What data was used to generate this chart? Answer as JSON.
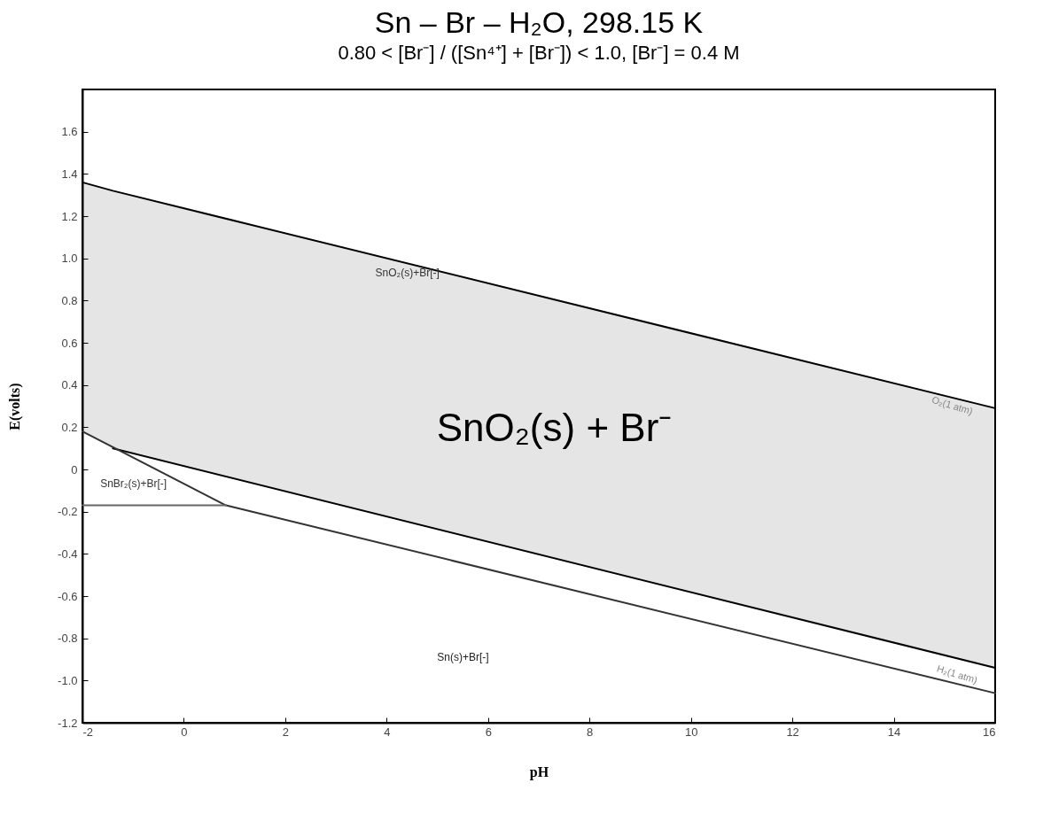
{
  "chart_data": {
    "type": "line",
    "title": "Sn – Br – H₂O, 298.15 K",
    "subtitle": "0.80 < [Br⁻] / ([Sn⁴⁺] + [Br⁻]) < 1.0, [Br⁻] = 0.4 M",
    "xlabel": "pH",
    "ylabel": "E(volts)",
    "xlim": [
      -2,
      16
    ],
    "xticks": [
      -2,
      0,
      2,
      4,
      6,
      8,
      10,
      12,
      14,
      16
    ],
    "ylim": [
      -1.2,
      1.8
    ],
    "yticks": [
      -1.2,
      {
        "value": -1,
        "label": "-1.0"
      },
      -0.8,
      -0.6,
      -0.4,
      -0.2,
      0,
      0.2,
      0.4,
      0.6,
      0.8,
      {
        "value": 1,
        "label": "1.0"
      },
      1.2,
      1.4,
      1.6
    ],
    "grid": false,
    "line_style": "solid",
    "marker": "none",
    "series": [
      {
        "color": "#000000",
        "x": [
          -2,
          -1.4,
          16
        ],
        "values": [
          1.36,
          1.32,
          0.29
        ],
        "lower": [
          0.18,
          0.1,
          -0.94
        ],
        "upper": [
          1.36,
          1.32,
          0.29
        ]
      },
      {
        "color": "#000000",
        "x": [
          -1.4,
          16
        ],
        "values": [
          0.1,
          -0.94
        ]
      },
      {
        "color": "#333333",
        "x": [
          -2,
          0.83,
          16
        ],
        "values": [
          0.18,
          -0.17,
          -1.06
        ]
      },
      {
        "color": "#666666",
        "x": [
          -2,
          0.83
        ],
        "values": [
          -0.17,
          -0.17
        ]
      }
    ],
    "annotations": [
      "SnO₂(s)+Br[-]",
      "SnO₂(s) + Br⁻",
      "SnBr₂(s)+Br[-]",
      "Sn(s)+Br[-]",
      {
        "text": "O₂(1 atm)",
        "x": 15.2,
        "y": 0.34
      },
      {
        "text": "H₂(1 atm)",
        "x": 15.2,
        "y": -1.01
      }
    ]
  }
}
